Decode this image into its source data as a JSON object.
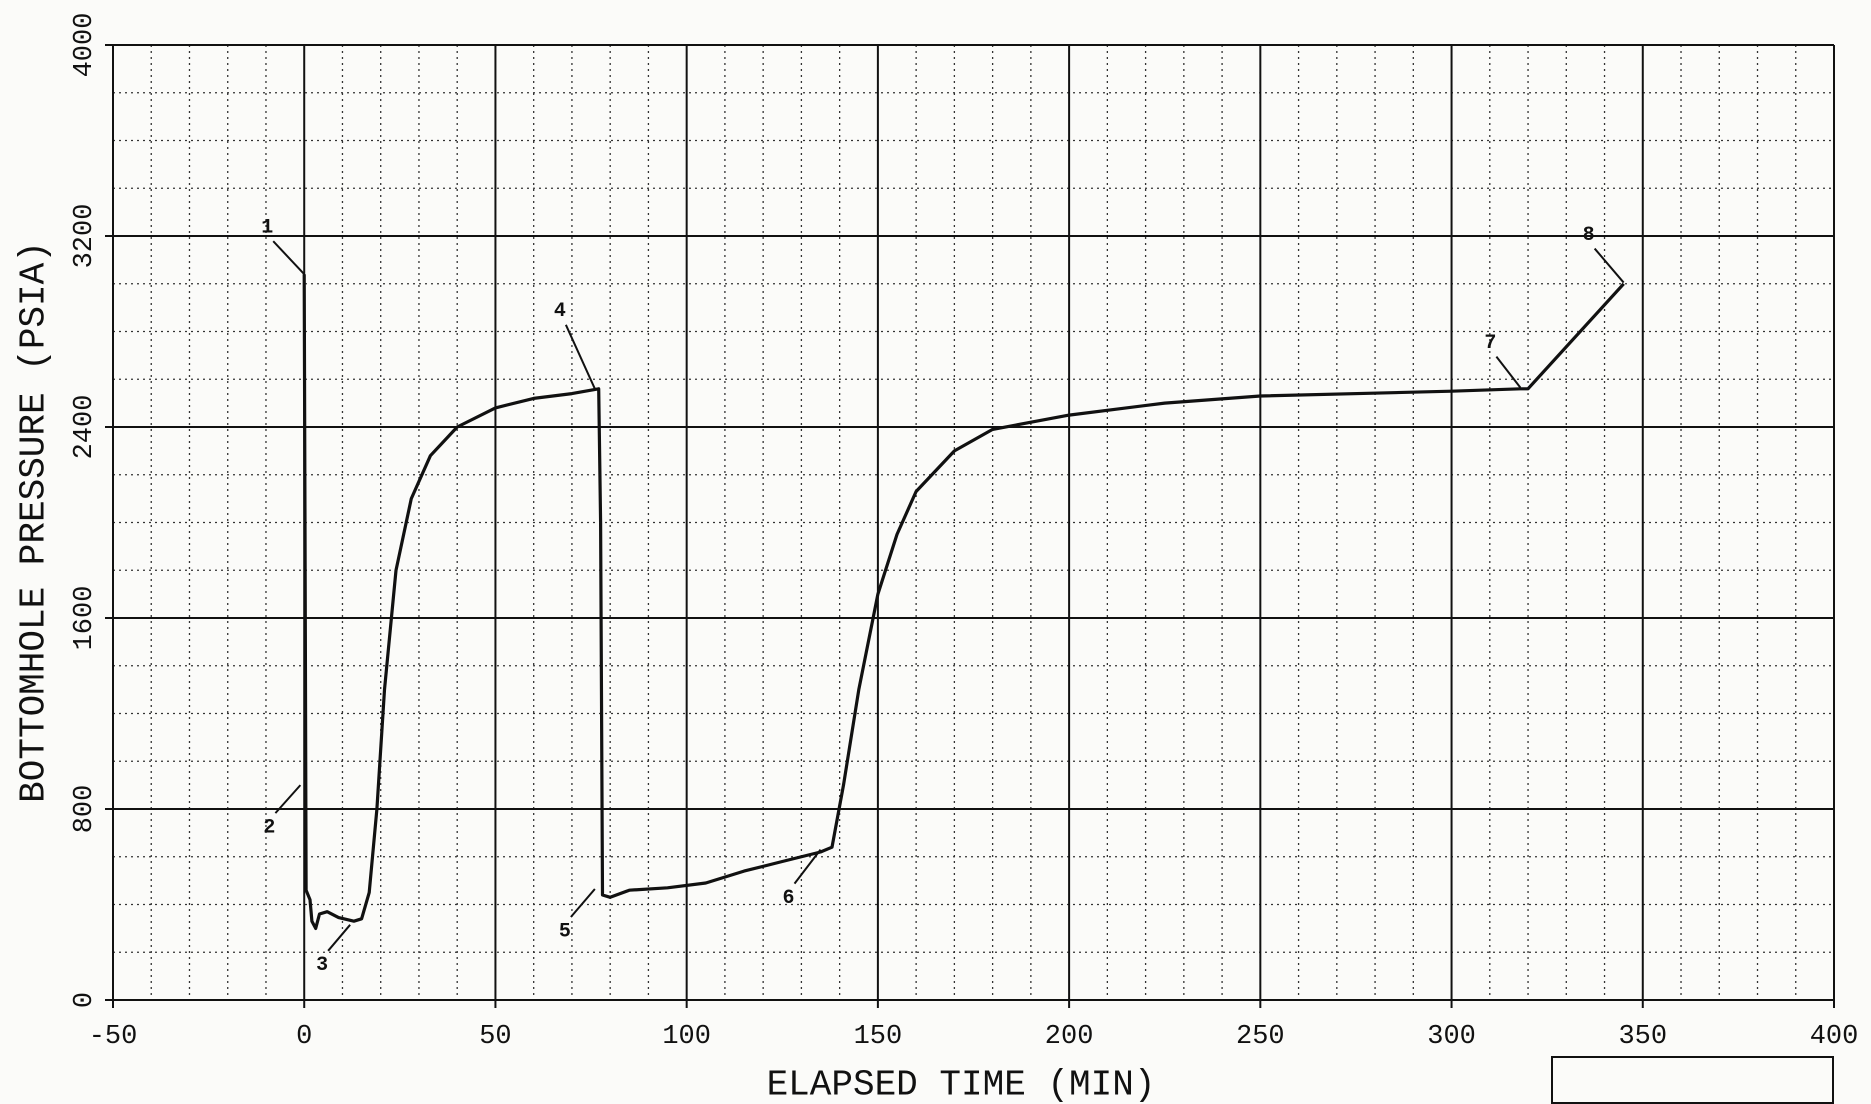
{
  "chart_data": {
    "type": "line",
    "xlabel": "ELAPSED TIME (MIN)",
    "ylabel": "BOTTOMHOLE PRESSURE (PSIA)",
    "x": [
      0,
      0.2,
      0.5,
      1.5,
      2,
      3,
      4,
      6,
      9,
      13,
      15,
      17,
      19,
      21,
      24,
      28,
      33,
      40,
      50,
      60,
      70,
      77,
      77.5,
      78,
      80,
      85,
      95,
      105,
      115,
      125,
      135,
      138,
      141,
      145,
      150,
      155,
      160,
      170,
      180,
      200,
      225,
      250,
      300,
      318,
      320,
      345
    ],
    "values": [
      3040,
      2000,
      460,
      420,
      330,
      300,
      360,
      370,
      345,
      330,
      340,
      450,
      800,
      1300,
      1800,
      2100,
      2280,
      2400,
      2480,
      2520,
      2540,
      2560,
      2000,
      440,
      430,
      460,
      470,
      490,
      540,
      580,
      620,
      640,
      900,
      1300,
      1700,
      1950,
      2130,
      2300,
      2390,
      2450,
      2500,
      2530,
      2550,
      2560,
      2560,
      3000
    ],
    "color": "#111111",
    "xlim": [
      -50,
      400
    ],
    "xticks": [
      -50,
      0,
      50,
      100,
      150,
      200,
      250,
      300,
      350,
      400
    ],
    "ylim": [
      0,
      4000
    ],
    "yticks": [
      0,
      800,
      1600,
      2400,
      3200,
      4000
    ],
    "grid": true,
    "annotations": [
      {
        "label": "1",
        "x": 0,
        "y": 3040
      },
      {
        "label": "2",
        "x": -1,
        "y": 900
      },
      {
        "label": "3",
        "x": 12,
        "y": 315
      },
      {
        "label": "4",
        "x": 76,
        "y": 2560
      },
      {
        "label": "5",
        "x": 76,
        "y": 465
      },
      {
        "label": "6",
        "x": 135,
        "y": 630
      },
      {
        "label": "7",
        "x": 318,
        "y": 2565
      },
      {
        "label": "8",
        "x": 345,
        "y": 3005
      }
    ]
  }
}
